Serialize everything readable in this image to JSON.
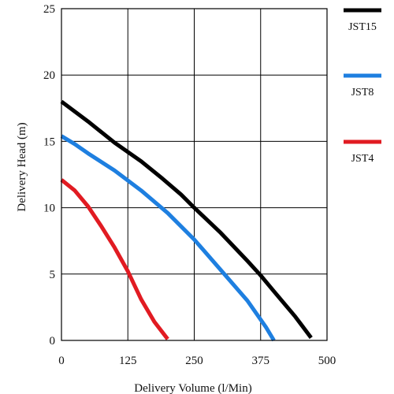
{
  "chart_data": {
    "type": "line",
    "xlabel": "Delivery Volume (l/Min)",
    "ylabel": "Delivery Head (m)",
    "xlim": [
      0,
      500
    ],
    "ylim": [
      0,
      25
    ],
    "xticks": [
      "0",
      "125",
      "250",
      "375",
      "500"
    ],
    "yticks": [
      "0",
      "5",
      "10",
      "15",
      "20",
      "25"
    ],
    "grid": true,
    "legend": "right",
    "series": [
      {
        "name": "JST15",
        "color": "#000000",
        "points": [
          [
            0,
            18
          ],
          [
            50,
            16.5
          ],
          [
            100,
            14.9
          ],
          [
            150,
            13.5
          ],
          [
            190,
            12.2
          ],
          [
            225,
            11
          ],
          [
            250,
            10
          ],
          [
            300,
            8.1
          ],
          [
            350,
            6
          ],
          [
            375,
            4.9
          ],
          [
            400,
            3.7
          ],
          [
            440,
            1.8
          ],
          [
            470,
            0.2
          ]
        ]
      },
      {
        "name": "JST8",
        "color": "#1e7fe0",
        "points": [
          [
            0,
            15.4
          ],
          [
            25,
            14.8
          ],
          [
            50,
            14.1
          ],
          [
            100,
            12.8
          ],
          [
            150,
            11.3
          ],
          [
            200,
            9.6
          ],
          [
            250,
            7.6
          ],
          [
            300,
            5.3
          ],
          [
            350,
            3
          ],
          [
            385,
            1
          ],
          [
            400,
            0
          ]
        ]
      },
      {
        "name": "JST4",
        "color": "#e11b22",
        "points": [
          [
            0,
            12.1
          ],
          [
            25,
            11.3
          ],
          [
            50,
            10.1
          ],
          [
            75,
            8.6
          ],
          [
            100,
            7
          ],
          [
            125,
            5.2
          ],
          [
            150,
            3.1
          ],
          [
            175,
            1.4
          ],
          [
            200,
            0.1
          ]
        ]
      }
    ]
  }
}
